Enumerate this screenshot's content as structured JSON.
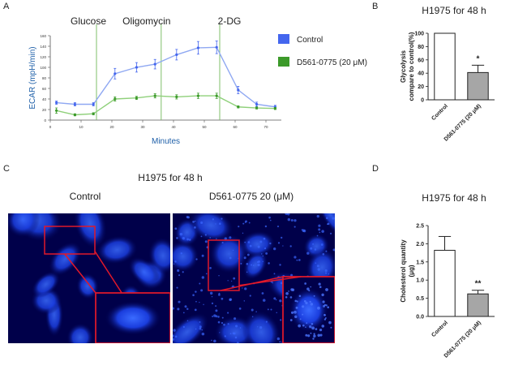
{
  "panel_letters": {
    "a": "A",
    "b": "B",
    "c": "C",
    "d": "D"
  },
  "colors": {
    "control": "#4466ee",
    "treated": "#3c9a2a",
    "ecar_axis": "#1e5fa8",
    "vline": "#7fbf6a",
    "cell": "#1a3dff",
    "box": "#e0182a"
  },
  "chart_data": [
    {
      "id": "ecar",
      "type": "line",
      "title": "",
      "xlabel": "Minutes",
      "ylabel": "ECAR (mpH/min)",
      "xlim": [
        0,
        75
      ],
      "ylim": [
        0,
        160
      ],
      "xticks": [
        0,
        10,
        20,
        30,
        40,
        50,
        60,
        70
      ],
      "yticks": [
        0,
        20,
        40,
        60,
        80,
        100,
        120,
        140,
        160
      ],
      "injections": [
        {
          "label": "Glucose",
          "x": 15
        },
        {
          "label": "Oligomycin",
          "x": 36
        },
        {
          "label": "2-DG",
          "x": 55
        }
      ],
      "legend_position": "right",
      "series": [
        {
          "name": "Control",
          "x": [
            2,
            8,
            14,
            21,
            28,
            34,
            41,
            48,
            54,
            61,
            67,
            73
          ],
          "y": [
            33,
            30,
            30,
            88,
            100,
            106,
            124,
            137,
            138,
            57,
            30,
            25
          ],
          "err": [
            3,
            3,
            3,
            10,
            9,
            9,
            10,
            12,
            12,
            7,
            4,
            3
          ]
        },
        {
          "name": "D561-0775 (20 μM)",
          "x": [
            2,
            8,
            14,
            21,
            28,
            34,
            41,
            48,
            54,
            61,
            67,
            73
          ],
          "y": [
            18,
            10,
            12,
            40,
            42,
            46,
            44,
            46,
            46,
            25,
            23,
            22
          ],
          "err": [
            5,
            2,
            2,
            4,
            3,
            4,
            4,
            5,
            5,
            2,
            2,
            2
          ]
        }
      ]
    },
    {
      "id": "glycolysis",
      "type": "bar",
      "title": "H1975 for 48 h",
      "ylabel": "Glycolysis\ncompare to control(%)",
      "categories": [
        "Control",
        "D561-0775 (20 μM)"
      ],
      "values": [
        100,
        41
      ],
      "errors": [
        0,
        11
      ],
      "significance": [
        "",
        "*"
      ],
      "ylim": [
        0,
        100
      ],
      "yticks": [
        0,
        20,
        40,
        60,
        80,
        100
      ]
    },
    {
      "id": "cholesterol",
      "type": "bar",
      "title": "H1975 for 48 h",
      "ylabel": "Cholesterol quantity\n(μg)",
      "categories": [
        "Control",
        "D561-0775 (20 μM)"
      ],
      "values": [
        1.82,
        0.62
      ],
      "errors": [
        0.38,
        0.1
      ],
      "significance": [
        "",
        "**"
      ],
      "ylim": [
        0,
        2.5
      ],
      "yticks": [
        "0.0",
        "0.5",
        "1.0",
        "1.5",
        "2.0",
        "2.5"
      ]
    }
  ],
  "panel_c": {
    "title": "H1975 for 48 h",
    "left_label": "Control",
    "right_label": "D561-0775 20 (μM)"
  }
}
